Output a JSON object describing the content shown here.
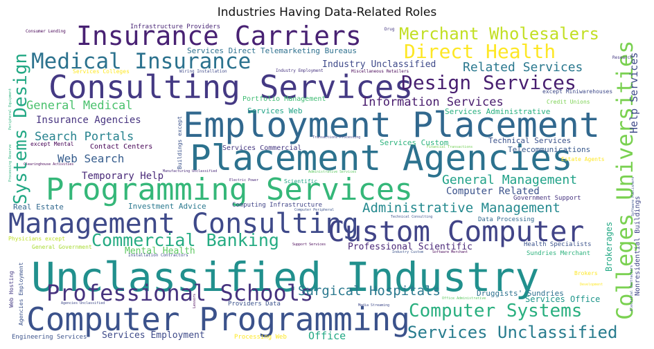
{
  "chart_data": {
    "type": "wordcloud",
    "title": "Industries Having Data-Related Roles",
    "words": [
      {
        "text": "Unclassified Industry",
        "weight": 100,
        "color": "#21908d"
      },
      {
        "text": "Placement Agencies",
        "weight": 88,
        "color": "#2c728e"
      },
      {
        "text": "Employment Placement",
        "weight": 87,
        "color": "#31688e"
      },
      {
        "text": "Computer Programming",
        "weight": 80,
        "color": "#3b528b"
      },
      {
        "text": "Consulting Services",
        "weight": 80,
        "color": "#443983"
      },
      {
        "text": "Programming Services",
        "weight": 77,
        "color": "#35b779"
      },
      {
        "text": "Custom Computer",
        "weight": 72,
        "color": "#414487"
      },
      {
        "text": "Management Consulting",
        "weight": 72,
        "color": "#3e4989"
      },
      {
        "text": "Insurance Carriers",
        "weight": 67,
        "color": "#482173"
      },
      {
        "text": "Professional Schools",
        "weight": 57,
        "color": "#46327e"
      },
      {
        "text": "Colleges Universities",
        "weight": 57,
        "color": "#7ad151"
      },
      {
        "text": "Medical Insurance",
        "weight": 55,
        "color": "#2c728e"
      },
      {
        "text": "Design Services",
        "weight": 48,
        "color": "#481f70"
      },
      {
        "text": "Direct Health",
        "weight": 48,
        "color": "#fde725"
      },
      {
        "text": "Systems Design",
        "weight": 46,
        "color": "#22a884"
      },
      {
        "text": "Computer Systems",
        "weight": 46,
        "color": "#29af7f"
      },
      {
        "text": "Commercial Banking",
        "weight": 44,
        "color": "#25ab82"
      },
      {
        "text": "Services Unclassified",
        "weight": 42,
        "color": "#287c8e"
      },
      {
        "text": "Merchant Wholesalers",
        "weight": 42,
        "color": "#c2df23"
      },
      {
        "text": "Administrative Management",
        "weight": 34,
        "color": "#23898e"
      },
      {
        "text": "Surgical Hospitals",
        "weight": 34,
        "color": "#2a788e"
      },
      {
        "text": "Related Services",
        "weight": 32,
        "color": "#2a788e"
      },
      {
        "text": "General Management",
        "weight": 32,
        "color": "#1fa187"
      },
      {
        "text": "General Medical",
        "weight": 30,
        "color": "#4ac16d"
      },
      {
        "text": "Information Services",
        "weight": 30,
        "color": "#481b6d"
      },
      {
        "text": "Search Portals",
        "weight": 30,
        "color": "#26828e"
      },
      {
        "text": "Web Search",
        "weight": 28,
        "color": "#365d8d"
      },
      {
        "text": "Help Services",
        "weight": 26,
        "color": "#3e4989"
      },
      {
        "text": "Office",
        "weight": 26,
        "color": "#22a884"
      },
      {
        "text": "Insurance Agencies",
        "weight": 24,
        "color": "#46337f"
      },
      {
        "text": "Temporary Help",
        "weight": 24,
        "color": "#482878"
      },
      {
        "text": "Computer Related",
        "weight": 24,
        "color": "#3b528b"
      },
      {
        "text": "Industry Unclassified",
        "weight": 22,
        "color": "#3e4989"
      },
      {
        "text": "Professional Scientific",
        "weight": 22,
        "color": "#482677"
      },
      {
        "text": "Mental Health",
        "weight": 22,
        "color": "#5ec962"
      },
      {
        "text": "Services Employment",
        "weight": 22,
        "color": "#3e4a89"
      },
      {
        "text": "Services Office",
        "weight": 22,
        "color": "#1f968b"
      },
      {
        "text": "Brokerages",
        "weight": 20,
        "color": "#22a884"
      },
      {
        "text": "Services Direct Telemarketing Bureaus",
        "weight": 18,
        "color": "#2d708e"
      },
      {
        "text": "Services Administrative",
        "weight": 18,
        "color": "#29af7f"
      },
      {
        "text": "Services Custom",
        "weight": 18,
        "color": "#2db27d"
      },
      {
        "text": "Technical Services",
        "weight": 18,
        "color": "#3b528b"
      },
      {
        "text": "Services Web",
        "weight": 18,
        "color": "#20a386"
      },
      {
        "text": "Telecommunications",
        "weight": 18,
        "color": "#38598c"
      },
      {
        "text": "Investment Advice",
        "weight": 18,
        "color": "#2a788e"
      },
      {
        "text": "Real Estate",
        "weight": 18,
        "color": "#31688e"
      },
      {
        "text": "Druggists' Sundries",
        "weight": 18,
        "color": "#2d708e"
      },
      {
        "text": "Nonresidential Buildings",
        "weight": 16,
        "color": "#404688"
      },
      {
        "text": "Portfolio Management",
        "weight": 16,
        "color": "#3fbc73"
      },
      {
        "text": "Contact Centers",
        "weight": 16,
        "color": "#440154"
      },
      {
        "text": "Services Commercial",
        "weight": 16,
        "color": "#453781"
      },
      {
        "text": "Computing Infrastructure",
        "weight": 14,
        "color": "#414487"
      },
      {
        "text": "Data Processing",
        "weight": 14,
        "color": "#31688e"
      },
      {
        "text": "Government Support",
        "weight": 14,
        "color": "#46337f"
      },
      {
        "text": "Health Specialists",
        "weight": 14,
        "color": "#3b528b"
      },
      {
        "text": "Sundries Merchant",
        "weight": 14,
        "color": "#2db27d"
      },
      {
        "text": "Infrastructure Providers",
        "weight": 14,
        "color": "#482475"
      },
      {
        "text": "Engineering Services",
        "weight": 12,
        "color": "#3b528b"
      },
      {
        "text": "Providers Data",
        "weight": 12,
        "color": "#3b528b"
      },
      {
        "text": "Processing Web",
        "weight": 12,
        "color": "#fde725"
      },
      {
        "text": "Web Hosting",
        "weight": 12,
        "color": "#443a83"
      },
      {
        "text": "Agencies Employment",
        "weight": 12,
        "color": "#3b528b"
      },
      {
        "text": "Services Colleges",
        "weight": 12,
        "color": "#fde725"
      },
      {
        "text": "Credit Unions",
        "weight": 12,
        "color": "#7ad151"
      },
      {
        "text": "except Miniwarehouses",
        "weight": 12,
        "color": "#3e4989"
      },
      {
        "text": "Physicians except",
        "weight": 12,
        "color": "#bddf26"
      },
      {
        "text": "General Government",
        "weight": 11,
        "color": "#a8db34"
      },
      {
        "text": "except Mental",
        "weight": 11,
        "color": "#440154"
      },
      {
        "text": "Estate Agents",
        "weight": 11,
        "color": "#fde725"
      },
      {
        "text": "Scientific",
        "weight": 11,
        "color": "#20a386"
      },
      {
        "text": "Buildings except",
        "weight": 11,
        "color": "#3b528b"
      },
      {
        "text": "Brokers",
        "weight": 11,
        "color": "#fde725"
      },
      {
        "text": "Installation Contractors",
        "weight": 9,
        "color": "#3e4989"
      },
      {
        "text": "Wiring Installation",
        "weight": 9,
        "color": "#3e4989"
      },
      {
        "text": "Industry Employment",
        "weight": 9,
        "color": "#46337f"
      },
      {
        "text": "Miscellaneous Retailers",
        "weight": 9,
        "color": "#440154"
      },
      {
        "text": "Consumer Lending",
        "weight": 9,
        "color": "#440154"
      },
      {
        "text": "Drug",
        "weight": 9,
        "color": "#453781"
      },
      {
        "text": "Research",
        "weight": 9,
        "color": "#443983"
      },
      {
        "text": "Manufacturing Unclassified",
        "weight": 8,
        "color": "#482878"
      },
      {
        "text": "Electric Power",
        "weight": 8,
        "color": "#482878"
      },
      {
        "text": "Clearinghouse Activities",
        "weight": 8,
        "color": "#440154"
      },
      {
        "text": "Transactions Processing",
        "weight": 8,
        "color": "#414487"
      },
      {
        "text": "Financial Transactions",
        "weight": 8,
        "color": "#73d056"
      },
      {
        "text": "Administrative Services",
        "weight": 8,
        "color": "#5ec962"
      },
      {
        "text": "Computer Peripheral",
        "weight": 8,
        "color": "#3b528b"
      },
      {
        "text": "Technical Consulting",
        "weight": 8,
        "color": "#3b528b"
      },
      {
        "text": "Support Services",
        "weight": 8,
        "color": "#440154"
      },
      {
        "text": "Industry Custom",
        "weight": 8,
        "color": "#3b528b"
      },
      {
        "text": "Software Merchant",
        "weight": 8,
        "color": "#440154"
      },
      {
        "text": "Agencies Unclassified",
        "weight": 8,
        "color": "#3e4989"
      },
      {
        "text": "Lessors",
        "weight": 8,
        "color": "#440154"
      },
      {
        "text": "Media Streaming",
        "weight": 8,
        "color": "#3e4989"
      },
      {
        "text": "Office Administrative",
        "weight": 8,
        "color": "#5ec962"
      },
      {
        "text": "Development",
        "weight": 8,
        "color": "#fde725"
      },
      {
        "text": "Peripheral Equipment",
        "weight": 7,
        "color": "#2db27d"
      },
      {
        "text": "Processing Reserve",
        "weight": 7,
        "color": "#2db27d"
      },
      {
        "text": "Software Publishers",
        "weight": 7,
        "color": "#3b528b"
      },
      {
        "text": "Electrical Contractors",
        "weight": 7,
        "color": "#3b528b"
      }
    ]
  }
}
